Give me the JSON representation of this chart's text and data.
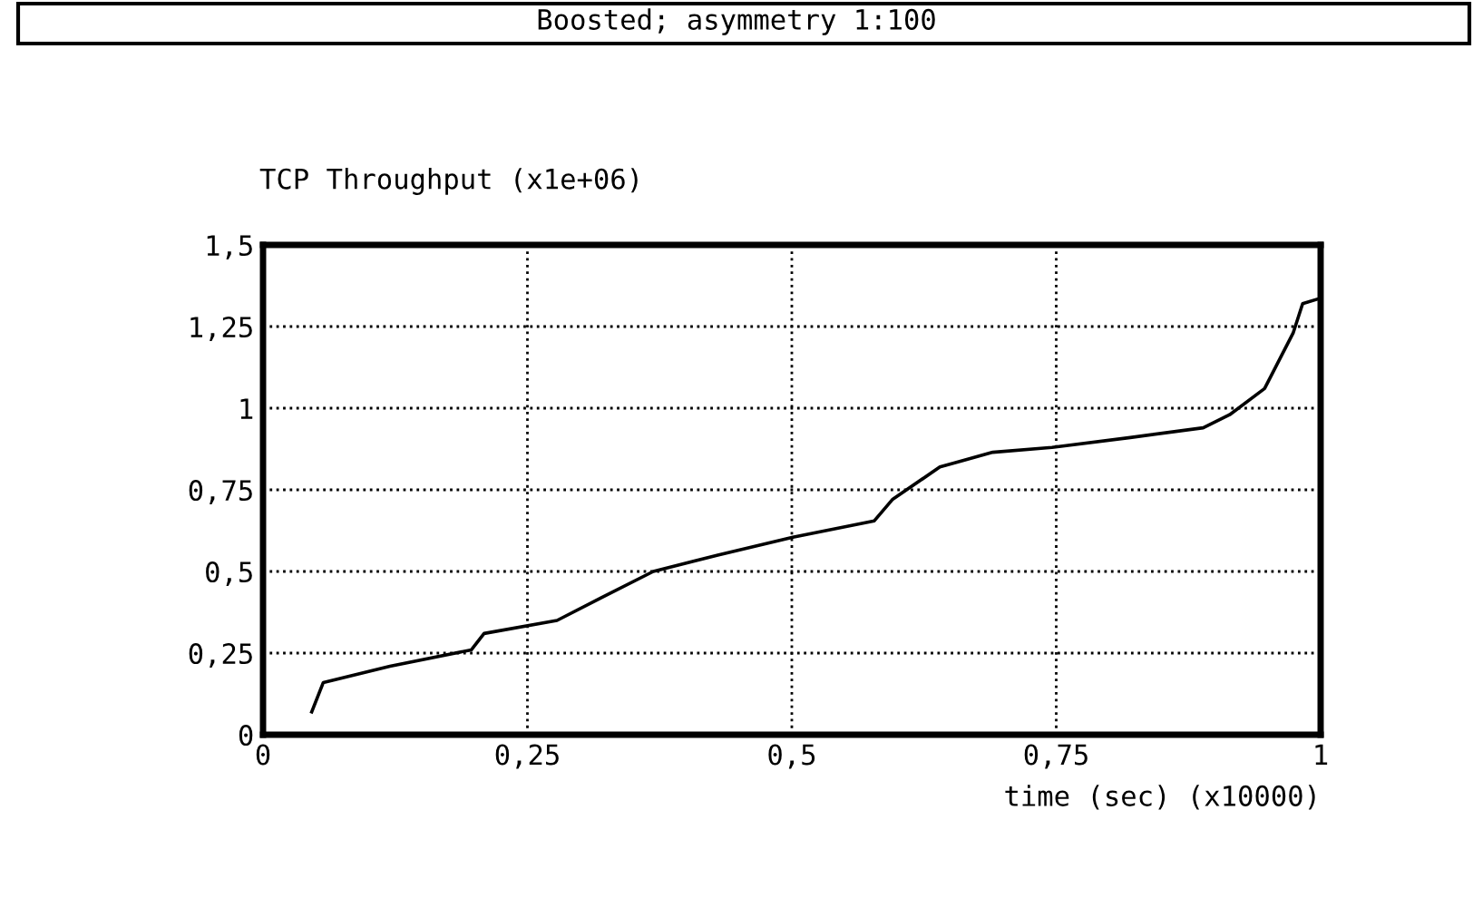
{
  "chart_data": {
    "type": "line",
    "title": "Boosted; asymmetry 1:100",
    "ylabel": "TCP Throughput (x1e+06)",
    "xlabel": "time (sec) (x10000)",
    "x": [
      0.046,
      0.057,
      0.12,
      0.197,
      0.209,
      0.278,
      0.32,
      0.369,
      0.43,
      0.501,
      0.578,
      0.595,
      0.64,
      0.69,
      0.746,
      0.82,
      0.889,
      0.914,
      0.947,
      0.974,
      0.983,
      0.998
    ],
    "series": [
      {
        "color": "#000000",
        "values": [
          0.07,
          0.16,
          0.21,
          0.26,
          0.31,
          0.35,
          0.42,
          0.5,
          0.55,
          0.605,
          0.655,
          0.72,
          0.82,
          0.865,
          0.88,
          0.91,
          0.94,
          0.98,
          1.06,
          1.23,
          1.32,
          1.335
        ]
      }
    ],
    "xlim": [
      0,
      1
    ],
    "ylim": [
      0,
      1.5
    ],
    "xticks": [
      0,
      {
        "value": 0.25,
        "label": "0,25"
      },
      {
        "value": 0.5,
        "label": "0,5"
      },
      {
        "value": 0.75,
        "label": "0,75"
      },
      1
    ],
    "yticks": [
      0,
      {
        "value": 0.25,
        "label": "0,25"
      },
      {
        "value": 0.5,
        "label": "0,5"
      },
      {
        "value": 0.75,
        "label": "0,75"
      },
      1,
      {
        "value": 1.25,
        "label": "1,25"
      },
      {
        "value": 1.5,
        "label": "1,5"
      }
    ],
    "grid": true,
    "line_style": "solid",
    "marker": "none"
  }
}
